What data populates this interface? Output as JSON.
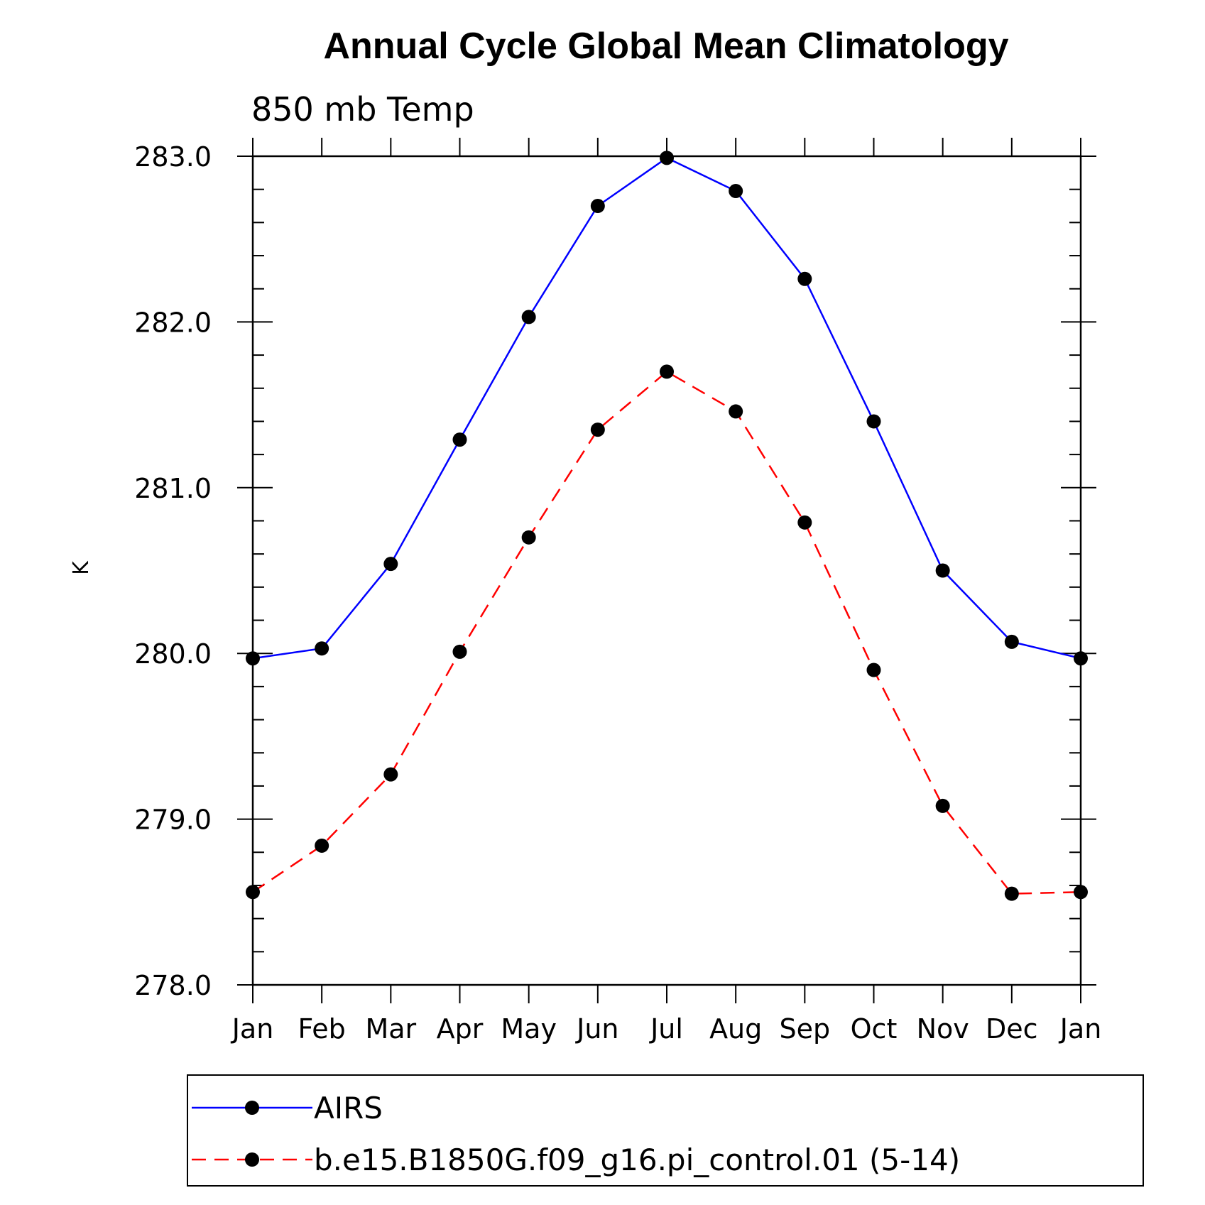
{
  "chart_data": {
    "type": "line",
    "title": "Annual Cycle Global Mean Climatology",
    "subtitle": "850 mb Temp",
    "ylabel": "K",
    "xlabel": "",
    "categories": [
      "Jan",
      "Feb",
      "Mar",
      "Apr",
      "May",
      "Jun",
      "Jul",
      "Aug",
      "Sep",
      "Oct",
      "Nov",
      "Dec",
      "Jan"
    ],
    "ylim": [
      278.0,
      283.0
    ],
    "yticks": [
      "278.0",
      "279.0",
      "280.0",
      "281.0",
      "282.0",
      "283.0"
    ],
    "y_minor_step": 0.2,
    "grid": false,
    "legend_position": "bottom",
    "series": [
      {
        "name": "AIRS",
        "color": "#0000ff",
        "line_style": "solid",
        "marker": "filled-circle",
        "values": [
          279.97,
          280.03,
          280.54,
          281.29,
          282.03,
          282.7,
          282.99,
          282.79,
          282.26,
          281.4,
          280.5,
          280.07,
          279.97
        ]
      },
      {
        "name": "b.e15.B1850G.f09_g16.pi_control.01 (5-14)",
        "color": "#ff0000",
        "line_style": "dashed",
        "marker": "filled-circle",
        "values": [
          278.56,
          278.84,
          279.27,
          280.01,
          280.7,
          281.35,
          281.7,
          281.46,
          280.79,
          279.9,
          279.08,
          278.55,
          278.56
        ]
      }
    ]
  }
}
